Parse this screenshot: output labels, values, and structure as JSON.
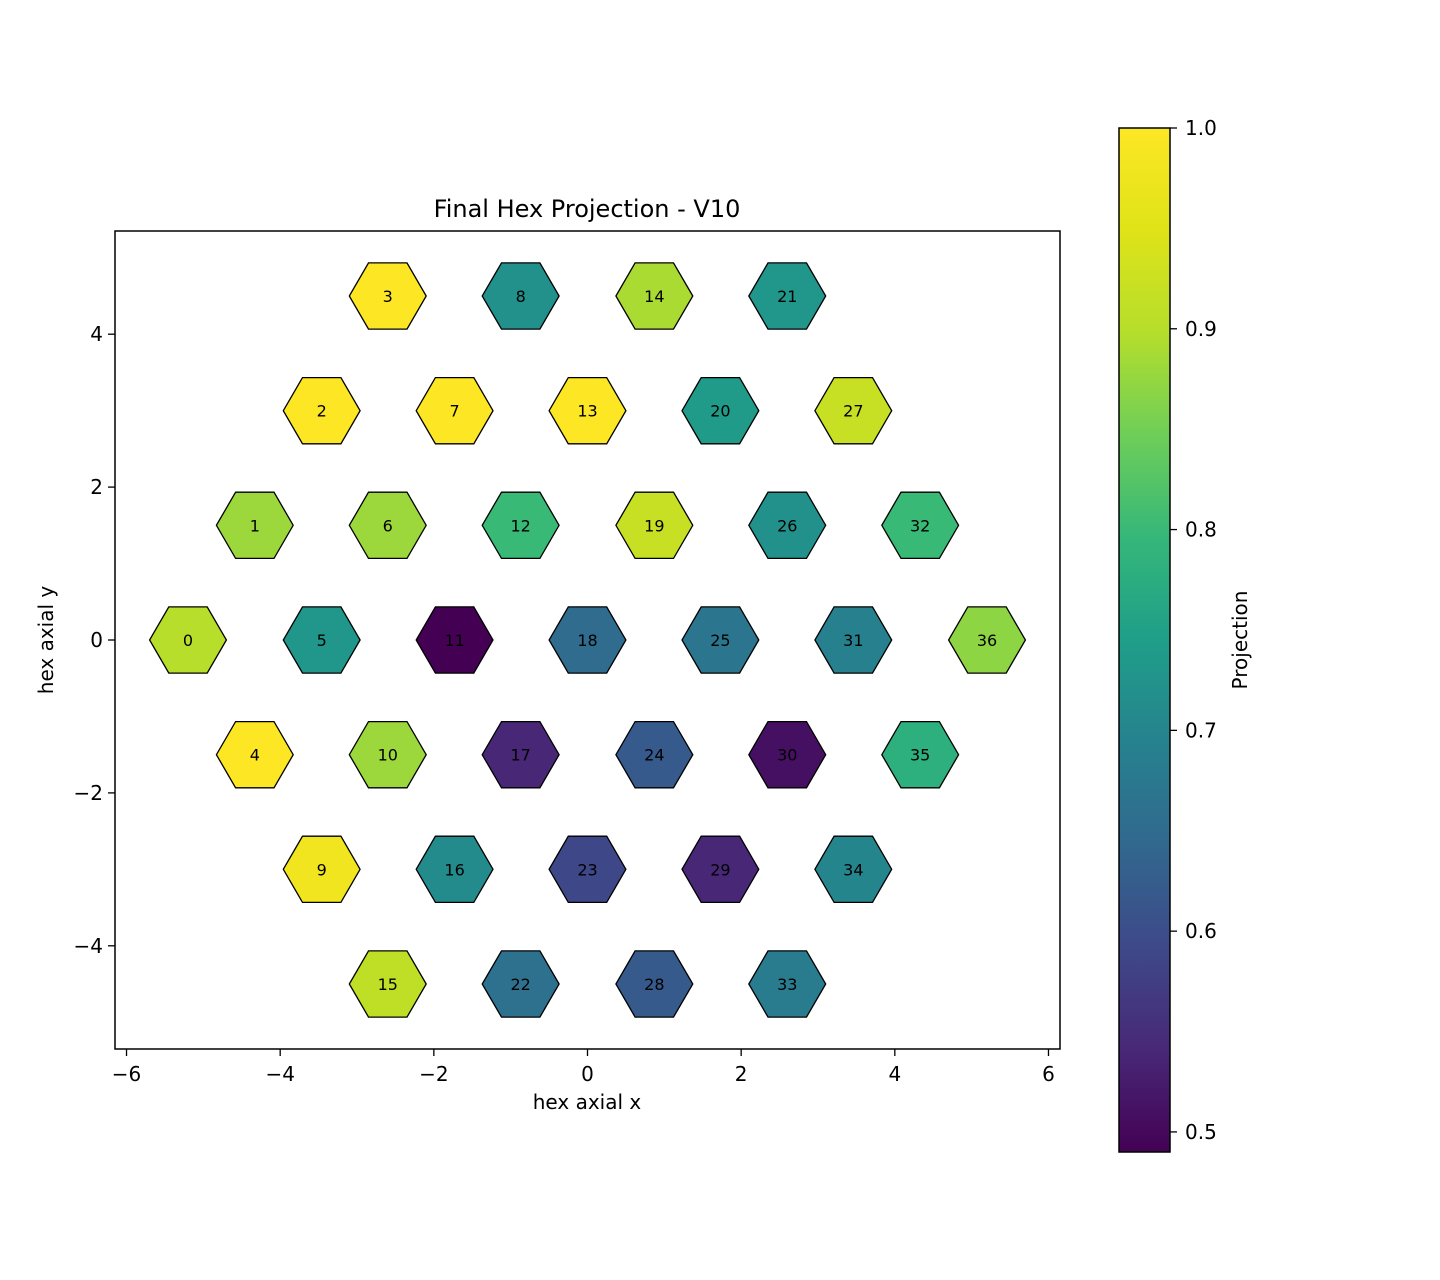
{
  "chart_data": {
    "type": "heatmap",
    "title": "Final Hex Projection - V10",
    "xlabel": "hex axial x",
    "ylabel": "hex axial y",
    "xlim": [
      -6.15,
      6.15
    ],
    "ylim": [
      -5.35,
      5.35
    ],
    "xticks": [
      -6,
      -4,
      -2,
      0,
      2,
      4,
      6
    ],
    "yticks": [
      -4,
      -2,
      0,
      2,
      4
    ],
    "colorbar": {
      "label": "Projection",
      "min": 0.49,
      "max": 1.0,
      "ticks": [
        0.5,
        0.6,
        0.7,
        0.8,
        0.9,
        1.0
      ],
      "colormap": "viridis"
    },
    "cells": [
      {
        "id": 0,
        "x": -5.2,
        "y": 0.0,
        "value": 0.9
      },
      {
        "id": 1,
        "x": -4.33,
        "y": 1.5,
        "value": 0.88
      },
      {
        "id": 2,
        "x": -3.46,
        "y": 3.0,
        "value": 1.0
      },
      {
        "id": 3,
        "x": -2.6,
        "y": 4.5,
        "value": 1.0
      },
      {
        "id": 4,
        "x": -4.33,
        "y": -1.5,
        "value": 1.0
      },
      {
        "id": 5,
        "x": -3.46,
        "y": 0.0,
        "value": 0.73
      },
      {
        "id": 6,
        "x": -2.6,
        "y": 1.5,
        "value": 0.88
      },
      {
        "id": 7,
        "x": -1.73,
        "y": 3.0,
        "value": 1.0
      },
      {
        "id": 8,
        "x": -0.87,
        "y": 4.5,
        "value": 0.72
      },
      {
        "id": 9,
        "x": -3.46,
        "y": -3.0,
        "value": 0.98
      },
      {
        "id": 10,
        "x": -2.6,
        "y": -1.5,
        "value": 0.88
      },
      {
        "id": 11,
        "x": -1.73,
        "y": 0.0,
        "value": 0.49
      },
      {
        "id": 12,
        "x": -0.87,
        "y": 1.5,
        "value": 0.8
      },
      {
        "id": 13,
        "x": 0.0,
        "y": 3.0,
        "value": 1.0
      },
      {
        "id": 14,
        "x": 0.87,
        "y": 4.5,
        "value": 0.89
      },
      {
        "id": 15,
        "x": -2.6,
        "y": -4.5,
        "value": 0.91
      },
      {
        "id": 16,
        "x": -1.73,
        "y": -3.0,
        "value": 0.71
      },
      {
        "id": 17,
        "x": -0.87,
        "y": -1.5,
        "value": 0.54
      },
      {
        "id": 18,
        "x": 0.0,
        "y": 0.0,
        "value": 0.65
      },
      {
        "id": 19,
        "x": 0.87,
        "y": 1.5,
        "value": 0.92
      },
      {
        "id": 20,
        "x": 1.73,
        "y": 3.0,
        "value": 0.74
      },
      {
        "id": 21,
        "x": 2.6,
        "y": 4.5,
        "value": 0.73
      },
      {
        "id": 22,
        "x": -0.87,
        "y": -4.5,
        "value": 0.66
      },
      {
        "id": 23,
        "x": 0.0,
        "y": -3.0,
        "value": 0.59
      },
      {
        "id": 24,
        "x": 0.87,
        "y": -1.5,
        "value": 0.62
      },
      {
        "id": 25,
        "x": 1.73,
        "y": 0.0,
        "value": 0.67
      },
      {
        "id": 26,
        "x": 2.6,
        "y": 1.5,
        "value": 0.72
      },
      {
        "id": 27,
        "x": 3.46,
        "y": 3.0,
        "value": 0.92
      },
      {
        "id": 28,
        "x": 0.87,
        "y": -4.5,
        "value": 0.62
      },
      {
        "id": 29,
        "x": 1.73,
        "y": -3.0,
        "value": 0.54
      },
      {
        "id": 30,
        "x": 2.6,
        "y": -1.5,
        "value": 0.51
      },
      {
        "id": 31,
        "x": 3.46,
        "y": 0.0,
        "value": 0.69
      },
      {
        "id": 32,
        "x": 4.33,
        "y": 1.5,
        "value": 0.8
      },
      {
        "id": 33,
        "x": 2.6,
        "y": -4.5,
        "value": 0.68
      },
      {
        "id": 34,
        "x": 3.46,
        "y": -3.0,
        "value": 0.7
      },
      {
        "id": 35,
        "x": 4.33,
        "y": -1.5,
        "value": 0.78
      },
      {
        "id": 36,
        "x": 5.2,
        "y": 0.0,
        "value": 0.87
      }
    ]
  }
}
